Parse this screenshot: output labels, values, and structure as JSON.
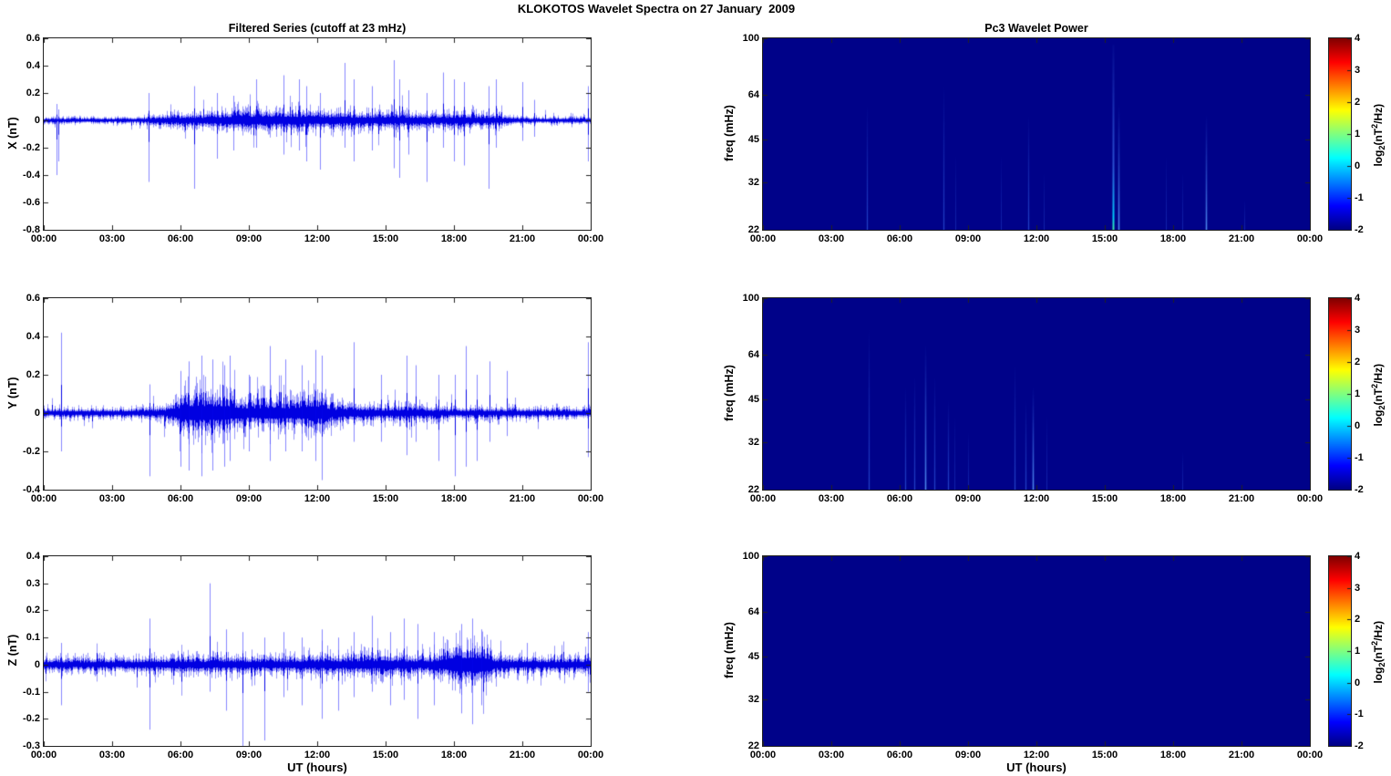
{
  "figure_title": "KLOKOTOS Wavelet Spectra on 27 January  2009",
  "line_color": "#0000ee",
  "xticks": [
    "00:00",
    "03:00",
    "06:00",
    "09:00",
    "12:00",
    "15:00",
    "18:00",
    "21:00",
    "00:00"
  ],
  "streak_levels": {
    "vfaint": "rgba(50,95,235,0.35)",
    "faint": "rgba(60,115,250,0.55)",
    "medium": "rgba(90,160,255,0.85)",
    "bright_core": "#3fe8a6",
    "bright": "rgba(0,215,255,0.95)"
  },
  "colorbar": {
    "ticks": [
      "4",
      "3",
      "2",
      "1",
      "0",
      "-1",
      "-2"
    ],
    "range": [
      -2,
      4
    ],
    "label": {
      "pre": "log",
      "sub": "2",
      "mid": "(nT",
      "sup": "2",
      "suf": "/Hz)"
    },
    "gradient": [
      [
        0,
        "#7f0000"
      ],
      [
        0.125,
        "#ff0000"
      ],
      [
        0.375,
        "#ffff00"
      ],
      [
        0.625,
        "#00ffff"
      ],
      [
        0.875,
        "#0000ff"
      ],
      [
        1,
        "#000082"
      ]
    ]
  },
  "chart_data": [
    {
      "type": "line",
      "title": "Filtered Series (cutoff at 23 mHz)",
      "ylabel": "X (nT)",
      "ylim": [
        -0.8,
        0.6
      ],
      "yticks": [
        "0.6",
        "0.4",
        "0.2",
        "0",
        "-0.2",
        "-0.4",
        "-0.6",
        "-0.8"
      ],
      "xlim_hours": [
        0,
        24
      ],
      "seed": 7,
      "noise_base": 0.022,
      "envelope": [
        [
          0,
          0.012
        ],
        [
          4,
          0.014
        ],
        [
          4.5,
          0.02
        ],
        [
          5,
          0.03
        ],
        [
          5.5,
          0.04
        ],
        [
          6,
          0.045
        ],
        [
          7,
          0.05
        ],
        [
          8,
          0.07
        ],
        [
          8.5,
          0.08
        ],
        [
          9,
          0.08
        ],
        [
          10,
          0.075
        ],
        [
          11,
          0.08
        ],
        [
          12,
          0.07
        ],
        [
          13,
          0.065
        ],
        [
          14,
          0.055
        ],
        [
          15,
          0.065
        ],
        [
          16,
          0.055
        ],
        [
          17,
          0.05
        ],
        [
          18,
          0.055
        ],
        [
          19,
          0.05
        ],
        [
          19.8,
          0.045
        ],
        [
          20.3,
          0.03
        ],
        [
          21,
          0.018
        ],
        [
          22,
          0.015
        ],
        [
          24,
          0.015
        ]
      ],
      "spikes": [
        [
          0.55,
          0.12,
          -0.4
        ],
        [
          0.62,
          0.08,
          -0.3
        ],
        [
          4.6,
          0.2,
          -0.45
        ],
        [
          6.6,
          0.25,
          -0.5
        ],
        [
          7.6,
          0.2,
          -0.28
        ],
        [
          8.3,
          0.18,
          -0.22
        ],
        [
          9.3,
          0.3,
          -0.2
        ],
        [
          10.5,
          0.33,
          -0.25
        ],
        [
          11.2,
          0.3,
          -0.22
        ],
        [
          11.5,
          0.25,
          -0.3
        ],
        [
          12.1,
          0.2,
          -0.36
        ],
        [
          13.2,
          0.42,
          -0.2
        ],
        [
          13.6,
          0.3,
          -0.3
        ],
        [
          14.4,
          0.25,
          -0.22
        ],
        [
          15.35,
          0.44,
          -0.35
        ],
        [
          15.6,
          0.3,
          -0.42
        ],
        [
          16.0,
          0.22,
          -0.25
        ],
        [
          16.8,
          0.2,
          -0.45
        ],
        [
          17.5,
          0.35,
          -0.2
        ],
        [
          18.0,
          0.3,
          -0.3
        ],
        [
          18.45,
          0.28,
          -0.33
        ],
        [
          19.5,
          0.25,
          -0.5
        ],
        [
          19.85,
          0.3,
          -0.2
        ],
        [
          21.0,
          0.28,
          -0.15
        ],
        [
          21.5,
          0.15,
          -0.12
        ],
        [
          23.9,
          0.25,
          -0.3
        ]
      ]
    },
    {
      "type": "heatmap",
      "title": "Pc3 Wavelet Power",
      "ylabel": "freq (mHz)",
      "flim": [
        22,
        100
      ],
      "yticks": [
        "100",
        "64",
        "45",
        "32",
        "22"
      ],
      "bg_color": "#000289",
      "streaks": [
        [
          4.56,
          60,
          "faint"
        ],
        [
          7.92,
          70,
          "faint"
        ],
        [
          8.45,
          40,
          "vfaint"
        ],
        [
          10.45,
          40,
          "vfaint"
        ],
        [
          11.65,
          55,
          "faint"
        ],
        [
          12.3,
          35,
          "vfaint"
        ],
        [
          15.36,
          95,
          "bright"
        ],
        [
          15.58,
          60,
          "medium"
        ],
        [
          17.7,
          40,
          "vfaint"
        ],
        [
          18.4,
          35,
          "vfaint"
        ],
        [
          19.45,
          55,
          "medium"
        ],
        [
          21.1,
          28,
          "vfaint"
        ]
      ]
    },
    {
      "type": "line",
      "title": "",
      "ylabel": "Y (nT)",
      "ylim": [
        -0.4,
        0.6
      ],
      "yticks": [
        "0.6",
        "0.4",
        "0.2",
        "0",
        "-0.2",
        "-0.4"
      ],
      "xlim_hours": [
        0,
        24
      ],
      "seed": 13,
      "noise_base": 0.02,
      "envelope": [
        [
          0,
          0.018
        ],
        [
          4.5,
          0.02
        ],
        [
          5.3,
          0.03
        ],
        [
          5.8,
          0.07
        ],
        [
          6.2,
          0.11
        ],
        [
          6.6,
          0.12
        ],
        [
          7.2,
          0.12
        ],
        [
          7.8,
          0.11
        ],
        [
          8.3,
          0.09
        ],
        [
          9,
          0.07
        ],
        [
          9.5,
          0.08
        ],
        [
          10,
          0.09
        ],
        [
          10.8,
          0.08
        ],
        [
          11.3,
          0.09
        ],
        [
          11.8,
          0.1
        ],
        [
          12.3,
          0.08
        ],
        [
          12.8,
          0.05
        ],
        [
          13.3,
          0.05
        ],
        [
          14,
          0.04
        ],
        [
          15,
          0.035
        ],
        [
          16,
          0.04
        ],
        [
          17,
          0.03
        ],
        [
          18,
          0.025
        ],
        [
          20,
          0.022
        ],
        [
          24,
          0.02
        ]
      ],
      "spikes": [
        [
          0.75,
          0.42,
          -0.2
        ],
        [
          4.65,
          0.15,
          -0.33
        ],
        [
          6.0,
          0.22,
          -0.28
        ],
        [
          6.35,
          0.27,
          -0.3
        ],
        [
          6.9,
          0.3,
          -0.33
        ],
        [
          7.4,
          0.28,
          -0.3
        ],
        [
          7.9,
          0.25,
          -0.28
        ],
        [
          8.15,
          0.3,
          -0.25
        ],
        [
          9.0,
          0.2,
          -0.2
        ],
        [
          9.9,
          0.35,
          -0.25
        ],
        [
          10.6,
          0.28,
          -0.2
        ],
        [
          11.3,
          0.25,
          -0.2
        ],
        [
          11.9,
          0.33,
          -0.25
        ],
        [
          12.2,
          0.3,
          -0.35
        ],
        [
          13.6,
          0.37,
          -0.15
        ],
        [
          14.8,
          0.2,
          -0.15
        ],
        [
          15.9,
          0.3,
          -0.22
        ],
        [
          16.3,
          0.25,
          -0.15
        ],
        [
          17.3,
          0.2,
          -0.25
        ],
        [
          18.05,
          0.2,
          -0.33
        ],
        [
          18.5,
          0.35,
          -0.28
        ],
        [
          19.0,
          0.2,
          -0.25
        ],
        [
          19.55,
          0.27,
          -0.15
        ],
        [
          20.3,
          0.22,
          -0.12
        ],
        [
          23.9,
          0.37,
          -0.23
        ]
      ]
    },
    {
      "type": "heatmap",
      "title": "",
      "ylabel": "freq (mHz)",
      "flim": [
        22,
        100
      ],
      "yticks": [
        "100",
        "64",
        "45",
        "32",
        "22"
      ],
      "bg_color": "#000289",
      "streaks": [
        [
          4.64,
          80,
          "faint"
        ],
        [
          6.24,
          50,
          "faint"
        ],
        [
          6.64,
          55,
          "faint"
        ],
        [
          7.12,
          70,
          "medium"
        ],
        [
          7.52,
          55,
          "faint"
        ],
        [
          8.12,
          45,
          "faint"
        ],
        [
          8.4,
          40,
          "vfaint"
        ],
        [
          9.0,
          35,
          "vfaint"
        ],
        [
          11.04,
          60,
          "faint"
        ],
        [
          11.52,
          45,
          "faint"
        ],
        [
          11.84,
          50,
          "medium"
        ],
        [
          12.44,
          40,
          "vfaint"
        ],
        [
          18.4,
          30,
          "vfaint"
        ]
      ]
    },
    {
      "type": "line",
      "title": "",
      "ylabel": "Z (nT)",
      "ylim": [
        -0.3,
        0.4
      ],
      "yticks": [
        "0.4",
        "0.3",
        "0.2",
        "0.1",
        "0",
        "-0.1",
        "-0.2",
        "-0.3"
      ],
      "xlabel": "UT (hours)",
      "xlim_hours": [
        0,
        24
      ],
      "seed": 29,
      "noise_base": 0.02,
      "envelope": [
        [
          0,
          0.02
        ],
        [
          4,
          0.02
        ],
        [
          5,
          0.022
        ],
        [
          6,
          0.025
        ],
        [
          7,
          0.025
        ],
        [
          8,
          0.028
        ],
        [
          9,
          0.025
        ],
        [
          10,
          0.025
        ],
        [
          11,
          0.028
        ],
        [
          12,
          0.032
        ],
        [
          13,
          0.03
        ],
        [
          14,
          0.035
        ],
        [
          15,
          0.035
        ],
        [
          16,
          0.03
        ],
        [
          17,
          0.03
        ],
        [
          17.6,
          0.05
        ],
        [
          18,
          0.07
        ],
        [
          18.4,
          0.075
        ],
        [
          18.8,
          0.07
        ],
        [
          19.2,
          0.075
        ],
        [
          19.5,
          0.06
        ],
        [
          19.8,
          0.03
        ],
        [
          20.5,
          0.025
        ],
        [
          22,
          0.022
        ],
        [
          24,
          0.025
        ]
      ],
      "spikes": [
        [
          0.75,
          0.08,
          -0.15
        ],
        [
          4.65,
          0.17,
          -0.24
        ],
        [
          7.3,
          0.3,
          -0.1
        ],
        [
          8.0,
          0.13,
          -0.17
        ],
        [
          8.7,
          0.12,
          -0.3
        ],
        [
          9.7,
          0.1,
          -0.28
        ],
        [
          10.5,
          0.12,
          -0.12
        ],
        [
          11.3,
          0.1,
          -0.15
        ],
        [
          12.2,
          0.13,
          -0.2
        ],
        [
          12.9,
          0.1,
          -0.17
        ],
        [
          13.6,
          0.12,
          -0.12
        ],
        [
          14.4,
          0.18,
          -0.1
        ],
        [
          15.2,
          0.12,
          -0.15
        ],
        [
          15.8,
          0.17,
          -0.13
        ],
        [
          16.4,
          0.15,
          -0.2
        ],
        [
          17.1,
          0.12,
          -0.15
        ],
        [
          18.3,
          0.15,
          -0.18
        ],
        [
          18.8,
          0.17,
          -0.22
        ],
        [
          19.2,
          0.13,
          -0.15
        ],
        [
          21.2,
          0.08,
          -0.06
        ],
        [
          23.9,
          0.12,
          -0.1
        ]
      ]
    },
    {
      "type": "heatmap",
      "title": "",
      "ylabel": "freq (mHz)",
      "flim": [
        22,
        100
      ],
      "yticks": [
        "100",
        "64",
        "45",
        "32",
        "22"
      ],
      "xlabel": "UT (hours)",
      "bg_color": "#000289",
      "streaks": []
    }
  ]
}
